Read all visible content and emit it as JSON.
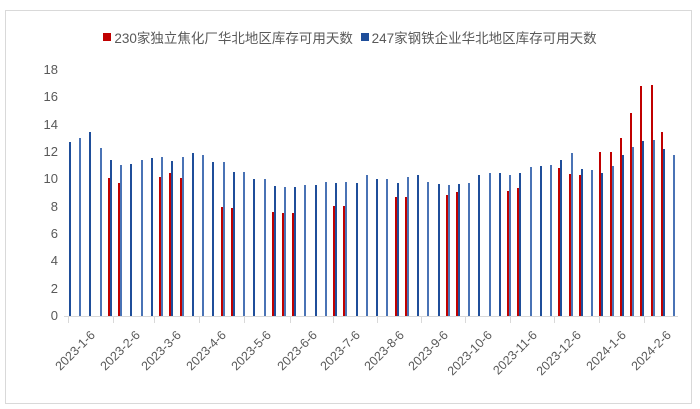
{
  "chart_data": {
    "type": "bar",
    "title": "",
    "xlabel": "",
    "ylabel": "",
    "ylim": [
      0,
      18
    ],
    "yticks": [
      0,
      2,
      4,
      6,
      8,
      10,
      12,
      14,
      16,
      18
    ],
    "grid": false,
    "legend_position": "top",
    "x_tick_labels": [
      "2023-1-6",
      "2023-2-6",
      "2023-3-6",
      "2023-4-6",
      "2023-5-6",
      "2023-6-6",
      "2023-7-6",
      "2023-8-6",
      "2023-9-6",
      "2023-10-6",
      "2023-11-6",
      "2023-12-6",
      "2024-1-6",
      "2024-2-6"
    ],
    "series": [
      {
        "name": "230家独立焦化厂华北地区库存可用天数",
        "color": "#c00000",
        "values": [
          null,
          null,
          null,
          null,
          10.1,
          9.7,
          null,
          null,
          null,
          10.2,
          10.5,
          10.1,
          null,
          null,
          null,
          7.96,
          7.9,
          null,
          null,
          null,
          7.6,
          7.55,
          7.55,
          null,
          null,
          null,
          8.05,
          8.05,
          null,
          null,
          null,
          null,
          8.7,
          8.7,
          null,
          null,
          null,
          8.85,
          9.1,
          null,
          null,
          null,
          null,
          9.15,
          9.4,
          null,
          null,
          null,
          10.8,
          10.4,
          10.3,
          null,
          12.0,
          12.0,
          13.0,
          14.85,
          16.8,
          16.9,
          13.45,
          null
        ]
      },
      {
        "name": "247家钢铁企业华北地区库存可用天数",
        "color": "#1f4e9a",
        "values": [
          12.7,
          13.0,
          13.45,
          12.3,
          11.4,
          11.05,
          11.1,
          11.4,
          11.55,
          11.6,
          11.35,
          11.6,
          11.9,
          11.75,
          11.25,
          11.25,
          10.55,
          10.55,
          10.0,
          10.0,
          9.5,
          9.45,
          9.45,
          9.6,
          9.6,
          9.8,
          9.75,
          9.8,
          9.75,
          10.3,
          10.0,
          10.0,
          9.75,
          10.15,
          10.3,
          9.8,
          9.65,
          9.6,
          9.65,
          9.75,
          10.3,
          10.45,
          10.5,
          10.35,
          10.45,
          10.9,
          10.95,
          11.05,
          11.45,
          11.9,
          10.75,
          10.7,
          10.45,
          10.95,
          11.75,
          12.35,
          12.8,
          12.85,
          12.2,
          11.75
        ]
      }
    ]
  },
  "legend": {
    "items": [
      {
        "label": "230家独立焦化厂华北地区库存可用天数",
        "color": "#c00000"
      },
      {
        "label": "247家钢铁企业华北地区库存可用天数",
        "color": "#1f4e9a"
      }
    ]
  }
}
